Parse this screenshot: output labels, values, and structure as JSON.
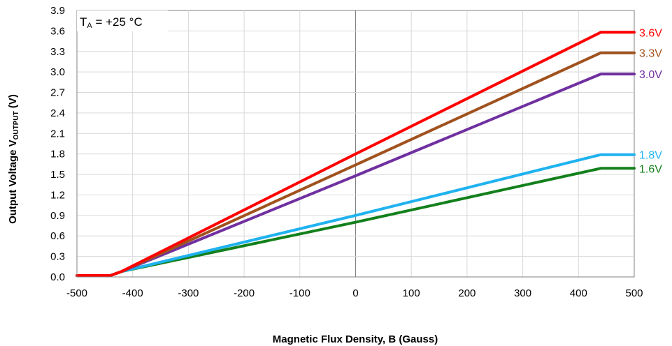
{
  "chart_data": {
    "type": "line",
    "xlabel": "Magnetic Flux Density, B (Gauss)",
    "ylabel_main": "Output Voltage V",
    "ylabel_sub": "OUTPUT",
    "ylabel_unit": " (V)",
    "annotation_main": "T",
    "annotation_sub": "A",
    "annotation_rest": " = +25 °C",
    "xlim": [
      -500,
      500
    ],
    "ylim": [
      0,
      3.9
    ],
    "x_ticks": [
      -500,
      -400,
      -300,
      -200,
      -100,
      0,
      100,
      200,
      300,
      400,
      500
    ],
    "y_ticks": [
      0.0,
      0.3,
      0.6,
      0.9,
      1.2,
      1.5,
      1.8,
      2.1,
      2.4,
      2.7,
      3.0,
      3.3,
      3.6,
      3.9
    ],
    "grid": true,
    "series": [
      {
        "name": "3.6V",
        "color": "#ff0000",
        "x": [
          -500,
          -440,
          -420,
          0,
          440,
          500
        ],
        "y": [
          0.02,
          0.02,
          0.08,
          1.8,
          3.58,
          3.58
        ]
      },
      {
        "name": "3.3V",
        "color": "#a0521e",
        "x": [
          -500,
          -440,
          -420,
          0,
          440,
          500
        ],
        "y": [
          0.02,
          0.02,
          0.08,
          1.64,
          3.28,
          3.28
        ]
      },
      {
        "name": "3.0V",
        "color": "#7030a0",
        "x": [
          -500,
          -440,
          -420,
          0,
          440,
          500
        ],
        "y": [
          0.02,
          0.02,
          0.08,
          1.48,
          2.97,
          2.97
        ]
      },
      {
        "name": "1.8V",
        "color": "#1fb2ef",
        "x": [
          -500,
          -440,
          -420,
          0,
          440,
          500
        ],
        "y": [
          0.02,
          0.02,
          0.08,
          0.9,
          1.79,
          1.79
        ]
      },
      {
        "name": "1.6V",
        "color": "#13801c",
        "x": [
          -500,
          -440,
          -420,
          0,
          440,
          500
        ],
        "y": [
          0.02,
          0.02,
          0.08,
          0.8,
          1.59,
          1.59
        ]
      }
    ]
  }
}
